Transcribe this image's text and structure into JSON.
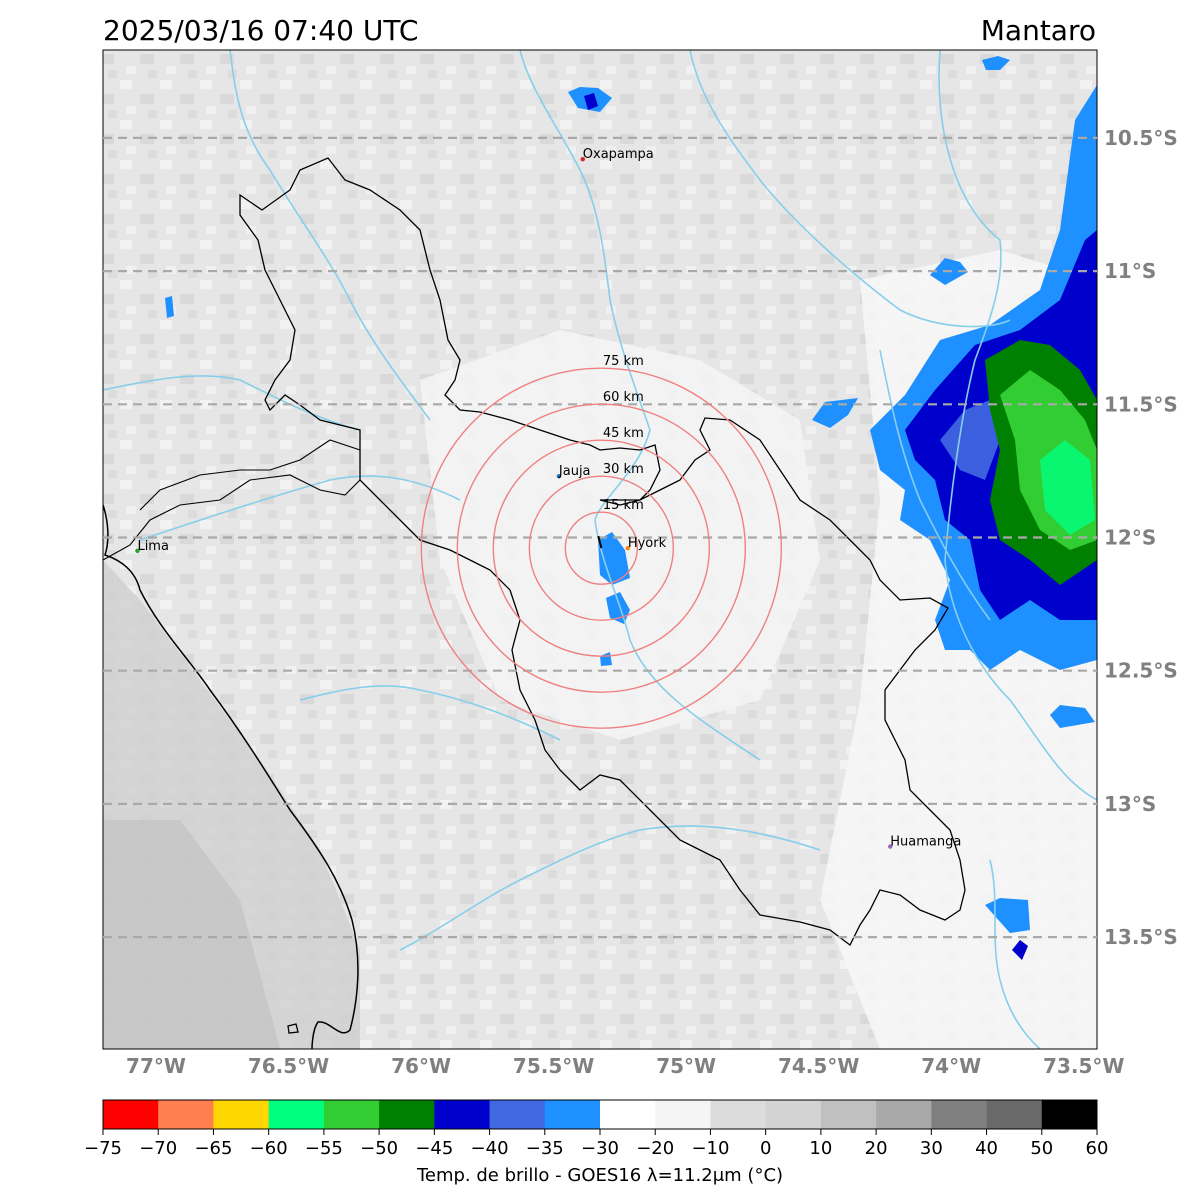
{
  "header": {
    "timestamp": "2025/03/16 07:40 UTC",
    "region": "Mantaro"
  },
  "map": {
    "lon_range": [
      -77.2,
      -73.45
    ],
    "lat_range": [
      -13.92,
      -10.17
    ],
    "lon_ticks": [
      {
        "value": -77.0,
        "label": "77°W"
      },
      {
        "value": -76.5,
        "label": "76.5°W"
      },
      {
        "value": -76.0,
        "label": "76°W"
      },
      {
        "value": -75.5,
        "label": "75.5°W"
      },
      {
        "value": -75.0,
        "label": "75°W"
      },
      {
        "value": -74.5,
        "label": "74.5°W"
      },
      {
        "value": -74.0,
        "label": "74°W"
      },
      {
        "value": -73.5,
        "label": "73.5°W"
      }
    ],
    "lat_ticks": [
      {
        "value": -10.5,
        "label": "10.5°S"
      },
      {
        "value": -11.0,
        "label": "11°S"
      },
      {
        "value": -11.5,
        "label": "11.5°S"
      },
      {
        "value": -12.0,
        "label": "12°S"
      },
      {
        "value": -12.5,
        "label": "12.5°S"
      },
      {
        "value": -13.0,
        "label": "13°S"
      },
      {
        "value": -13.5,
        "label": "13.5°S"
      }
    ],
    "gridlines": true,
    "cities": [
      {
        "name": "Oxapampa",
        "lon": -75.39,
        "lat": -10.58,
        "color": "#d62728"
      },
      {
        "name": "Jauja",
        "lon": -75.48,
        "lat": -11.77,
        "color": "#1f77b4"
      },
      {
        "name": "Hyork",
        "lon": -75.22,
        "lat": -12.04,
        "color": "#ff7f0e"
      },
      {
        "name": "Lima",
        "lon": -77.07,
        "lat": -12.05,
        "color": "#2ca02c"
      },
      {
        "name": "Huamanga",
        "lon": -74.23,
        "lat": -13.16,
        "color": "#9467bd"
      }
    ],
    "range_rings": {
      "center": {
        "lon": -75.32,
        "lat": -12.04
      },
      "color": "#f08080",
      "rings": [
        {
          "km": 15,
          "label": "15 km"
        },
        {
          "km": 30,
          "label": "30 km"
        },
        {
          "km": 45,
          "label": "45 km"
        },
        {
          "km": 60,
          "label": "60 km"
        },
        {
          "km": 75,
          "label": "75 km"
        }
      ]
    },
    "colors": {
      "background": "#ebebeb",
      "river": "#87ceeb",
      "basin_outline": "#000000",
      "coastline": "#000000",
      "gridline": "#a9a9a9"
    }
  },
  "colorbar": {
    "title": "Temp. de brillo - GOES16 λ=11.2μm (°C)",
    "levels": [
      -75,
      -70,
      -65,
      -60,
      -55,
      -50,
      -45,
      -40,
      -35,
      -30,
      -20,
      -10,
      0,
      10,
      20,
      30,
      40,
      50,
      60
    ],
    "tick_labels": [
      "−75",
      "−70",
      "−65",
      "−60",
      "−55",
      "−50",
      "−45",
      "−40",
      "−35",
      "−30",
      "−20",
      "−10",
      "0",
      "10",
      "20",
      "30",
      "40",
      "50",
      "60"
    ],
    "colors": [
      "#ff0000",
      "#ff7f50",
      "#ffd700",
      "#00ff7f",
      "#32cd32",
      "#008000",
      "#0000cd",
      "#4169e1",
      "#1e90ff",
      "#ffffff",
      "#f5f5f5",
      "#dcdcdc",
      "#d3d3d3",
      "#c0c0c0",
      "#a9a9a9",
      "#808080",
      "#696969",
      "#000000"
    ]
  }
}
